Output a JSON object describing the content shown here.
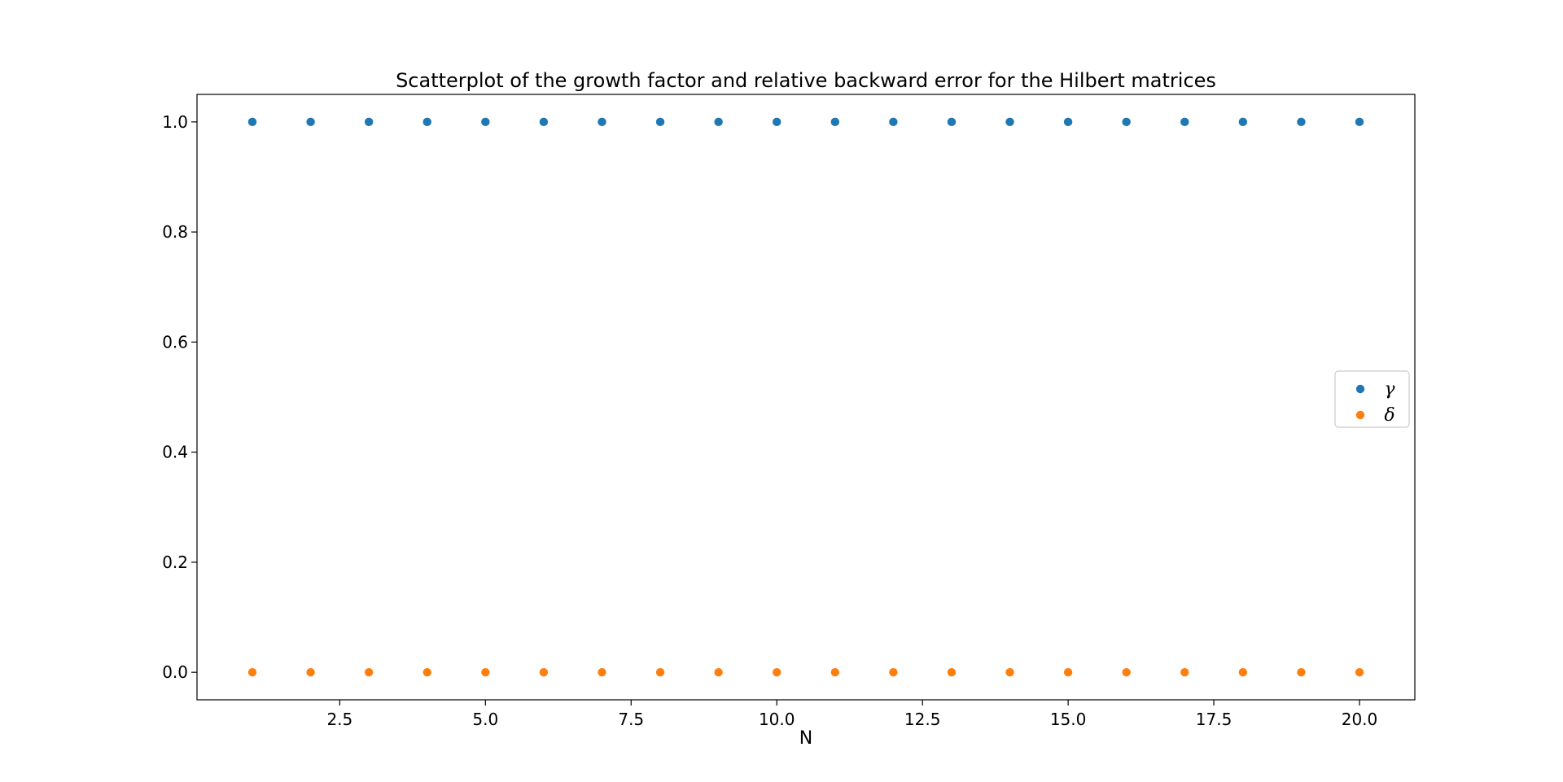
{
  "chart_data": {
    "type": "scatter",
    "title": "Scatterplot of the growth factor and relative backward error for the Hilbert matrices",
    "xlabel": "N",
    "ylabel": "",
    "xlim": [
      0.05,
      20.95
    ],
    "ylim": [
      -0.05,
      1.05
    ],
    "xticks": [
      2.5,
      5.0,
      7.5,
      10.0,
      12.5,
      15.0,
      17.5,
      20.0
    ],
    "xtick_labels": [
      "2.5",
      "5.0",
      "7.5",
      "10.0",
      "12.5",
      "15.0",
      "17.5",
      "20.0"
    ],
    "yticks": [
      0.0,
      0.2,
      0.4,
      0.6,
      0.8,
      1.0
    ],
    "ytick_labels": [
      "0.0",
      "0.2",
      "0.4",
      "0.6",
      "0.8",
      "1.0"
    ],
    "grid": false,
    "legend_position": "center right",
    "series": [
      {
        "name": "γ",
        "color": "#1f77b4",
        "x": [
          1,
          2,
          3,
          4,
          5,
          6,
          7,
          8,
          9,
          10,
          11,
          12,
          13,
          14,
          15,
          16,
          17,
          18,
          19,
          20
        ],
        "y": [
          1,
          1,
          1,
          1,
          1,
          1,
          1,
          1,
          1,
          1,
          1,
          1,
          1,
          1,
          1,
          1,
          1,
          1,
          1,
          1
        ]
      },
      {
        "name": "δ",
        "color": "#ff7f0e",
        "x": [
          1,
          2,
          3,
          4,
          5,
          6,
          7,
          8,
          9,
          10,
          11,
          12,
          13,
          14,
          15,
          16,
          17,
          18,
          19,
          20
        ],
        "y": [
          0,
          0,
          0,
          0,
          0,
          0,
          0,
          0,
          0,
          0,
          0,
          0,
          0,
          0,
          0,
          0,
          0,
          0,
          0,
          0
        ]
      }
    ]
  }
}
